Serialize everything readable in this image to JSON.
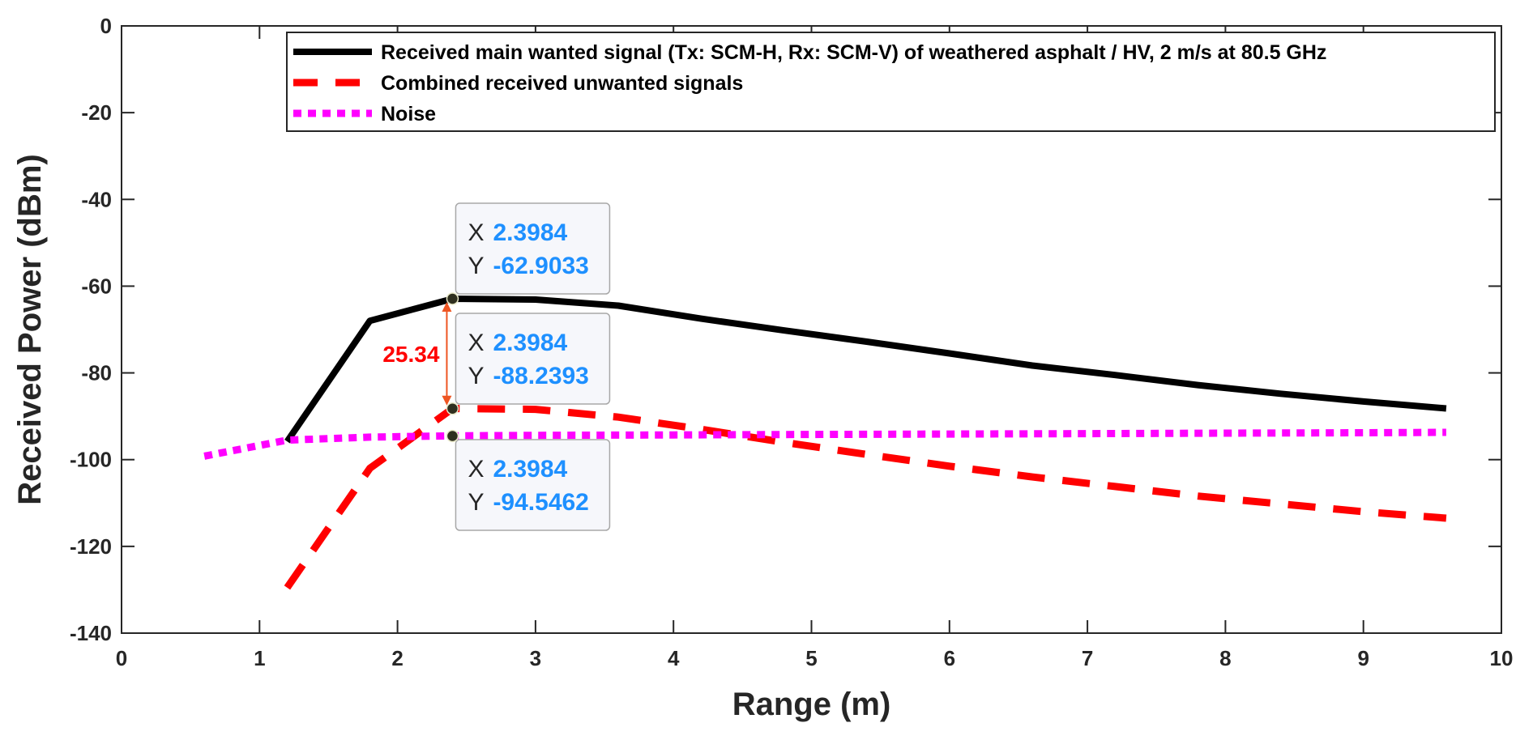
{
  "chart_data": {
    "type": "line",
    "xlabel": "Range (m)",
    "ylabel": "Received Power (dBm)",
    "xlim": [
      0,
      10
    ],
    "ylim": [
      -140,
      0
    ],
    "xticks": [
      0,
      1,
      2,
      3,
      4,
      5,
      6,
      7,
      8,
      9,
      10
    ],
    "yticks": [
      0,
      -20,
      -40,
      -60,
      -80,
      -100,
      -120,
      -140
    ],
    "grid": false,
    "legend_position": "top-right",
    "series": [
      {
        "name": "Received main wanted signal (Tx: SCM-H, Rx: SCM-V) of weathered asphalt / HV, 2 m/s at 80.5 GHz",
        "color": "#000000",
        "style": "solid",
        "x": [
          1.2,
          1.8,
          2.4,
          3.0,
          3.6,
          4.2,
          4.8,
          5.4,
          6.0,
          6.6,
          7.2,
          7.8,
          8.4,
          9.0,
          9.6
        ],
        "y": [
          -95.8,
          -68.0,
          -62.9,
          -63.1,
          -64.5,
          -67.5,
          -70.2,
          -72.8,
          -75.5,
          -78.3,
          -80.5,
          -82.8,
          -84.8,
          -86.6,
          -88.2
        ]
      },
      {
        "name": "Combined received unwanted signals",
        "color": "#ff0000",
        "style": "dashed",
        "x": [
          1.2,
          1.8,
          2.4,
          3.0,
          3.6,
          4.2,
          4.8,
          5.4,
          6.0,
          6.6,
          7.2,
          7.8,
          8.4,
          9.0,
          9.6
        ],
        "y": [
          -129.5,
          -102.0,
          -88.2,
          -88.4,
          -90.2,
          -93.0,
          -96.0,
          -98.8,
          -101.5,
          -104.0,
          -106.2,
          -108.4,
          -110.2,
          -112.0,
          -113.5
        ]
      },
      {
        "name": "Noise",
        "color": "#ff00ff",
        "style": "dotted",
        "x": [
          0.6,
          1.2,
          1.8,
          2.4,
          3.0,
          4.0,
          5.0,
          6.0,
          7.0,
          8.0,
          9.0,
          9.6
        ],
        "y": [
          -99.2,
          -95.5,
          -94.8,
          -94.5,
          -94.4,
          -94.3,
          -94.2,
          -94.1,
          -94.0,
          -93.9,
          -93.8,
          -93.7
        ]
      }
    ],
    "datatips": [
      {
        "x_key": "X",
        "y_key": "Y",
        "x_value": "2.3984",
        "y_value": "-62.9033",
        "x": 2.3984,
        "y": -62.9033
      },
      {
        "x_key": "X",
        "y_key": "Y",
        "x_value": "2.3984",
        "y_value": "-88.2393",
        "x": 2.3984,
        "y": -88.2393
      },
      {
        "x_key": "X",
        "y_key": "Y",
        "x_value": "2.3984",
        "y_value": "-94.5462",
        "x": 2.3984,
        "y": -94.5462
      }
    ],
    "annotation": {
      "text": "25.34",
      "x": 2.3984,
      "y_from": -62.9033,
      "y_to": -88.2393,
      "color": "#ff0000"
    }
  }
}
